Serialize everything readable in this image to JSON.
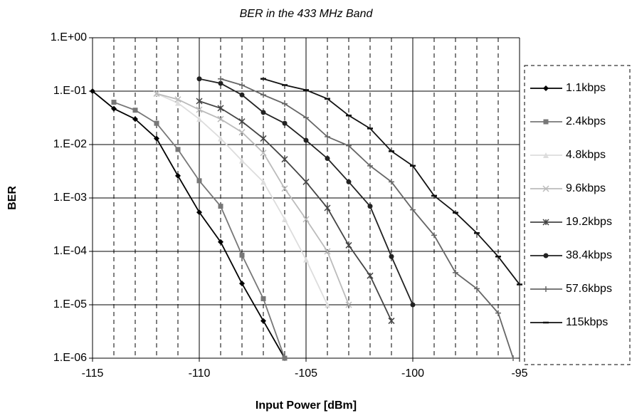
{
  "chart_data": {
    "type": "line",
    "title": "BER in the 433 MHz Band",
    "x_label": "Input Power [dBm]",
    "y_label": "BER",
    "xlim": [
      -115,
      -95
    ],
    "xticks": [
      -115,
      -110,
      -105,
      -100,
      -95
    ],
    "xminorticks": [
      -114,
      -113,
      -112,
      -111,
      -109,
      -108,
      -107,
      -106,
      -104,
      -103,
      -102,
      -101,
      -99,
      -98,
      -97,
      -96
    ],
    "ylim": [
      1e-06,
      1
    ],
    "ylog": true,
    "grid": true,
    "yticks": [
      {
        "value": 1,
        "label": "1.E+00"
      },
      {
        "value": 0.1,
        "label": "1.E-01"
      },
      {
        "value": 0.01,
        "label": "1.E-02"
      },
      {
        "value": 0.001,
        "label": "1.E-03"
      },
      {
        "value": 0.0001,
        "label": "1.E-04"
      },
      {
        "value": 1e-05,
        "label": "1.E-05"
      },
      {
        "value": 1e-06,
        "label": "1.E-06"
      }
    ],
    "series": [
      {
        "name": "1.1kbps",
        "color": "#000000",
        "marker": "diamond",
        "x": [
          -115,
          -114,
          -113,
          -112,
          -111,
          -110,
          -109,
          -108,
          -107,
          -106
        ],
        "values": [
          0.1,
          0.047,
          0.03,
          0.013,
          0.0026,
          0.00054,
          0.00015,
          2.5e-05,
          5e-06,
          1e-06
        ]
      },
      {
        "name": "2.4kbps",
        "color": "#777777",
        "marker": "square",
        "x": [
          -114,
          -113,
          -112,
          -111,
          -110,
          -109,
          -108,
          -107,
          -106
        ],
        "values": [
          0.062,
          0.044,
          0.025,
          0.0081,
          0.0021,
          0.0007,
          8.5e-05,
          1.3e-05,
          1e-06
        ]
      },
      {
        "name": "4.8kbps",
        "color": "#dddddd",
        "marker": "triangle",
        "x": [
          -112,
          -111,
          -110,
          -109,
          -108,
          -107,
          -106,
          -105,
          -104
        ],
        "values": [
          0.09,
          0.06,
          0.03,
          0.013,
          0.005,
          0.002,
          0.0004,
          7e-05,
          1e-05
        ]
      },
      {
        "name": "9.6kbps",
        "color": "#bbbbbb",
        "marker": "x",
        "x": [
          -112,
          -111,
          -110,
          -109,
          -108,
          -107,
          -106,
          -105,
          -104,
          -103
        ],
        "values": [
          0.09,
          0.07,
          0.045,
          0.03,
          0.017,
          0.007,
          0.0015,
          0.0004,
          0.0001,
          1e-05
        ]
      },
      {
        "name": "19.2kbps",
        "color": "#444444",
        "marker": "star",
        "x": [
          -110,
          -109,
          -108,
          -107,
          -106,
          -105,
          -104,
          -103,
          -102,
          -101
        ],
        "values": [
          0.065,
          0.048,
          0.027,
          0.013,
          0.0053,
          0.002,
          0.00065,
          0.00013,
          3.5e-05,
          5e-06
        ]
      },
      {
        "name": "38.4kbps",
        "color": "#222222",
        "marker": "circle",
        "x": [
          -110,
          -109,
          -108,
          -107,
          -106,
          -105,
          -104,
          -103,
          -102,
          -101,
          -100
        ],
        "values": [
          0.17,
          0.14,
          0.085,
          0.04,
          0.025,
          0.012,
          0.0055,
          0.002,
          0.0007,
          8e-05,
          1e-05
        ]
      },
      {
        "name": "57.6kbps",
        "color": "#666666",
        "marker": "plus",
        "x": [
          -109,
          -108,
          -107,
          -106,
          -105,
          -104,
          -103,
          -102,
          -101,
          -100,
          -99,
          -98,
          -97,
          -96,
          -95.3
        ],
        "values": [
          0.17,
          0.13,
          0.085,
          0.058,
          0.032,
          0.014,
          0.0095,
          0.004,
          0.002,
          0.0006,
          0.0002,
          4e-05,
          2e-05,
          7e-06,
          1e-06
        ]
      },
      {
        "name": "115kbps",
        "color": "#111111",
        "marker": "dash",
        "x": [
          -107,
          -106,
          -105,
          -104,
          -103,
          -102,
          -101,
          -100,
          -99,
          -98,
          -97,
          -96,
          -95
        ],
        "values": [
          0.17,
          0.13,
          0.105,
          0.072,
          0.035,
          0.02,
          0.0075,
          0.004,
          0.0011,
          0.00053,
          0.00022,
          8e-05,
          2.4e-05
        ]
      }
    ]
  }
}
